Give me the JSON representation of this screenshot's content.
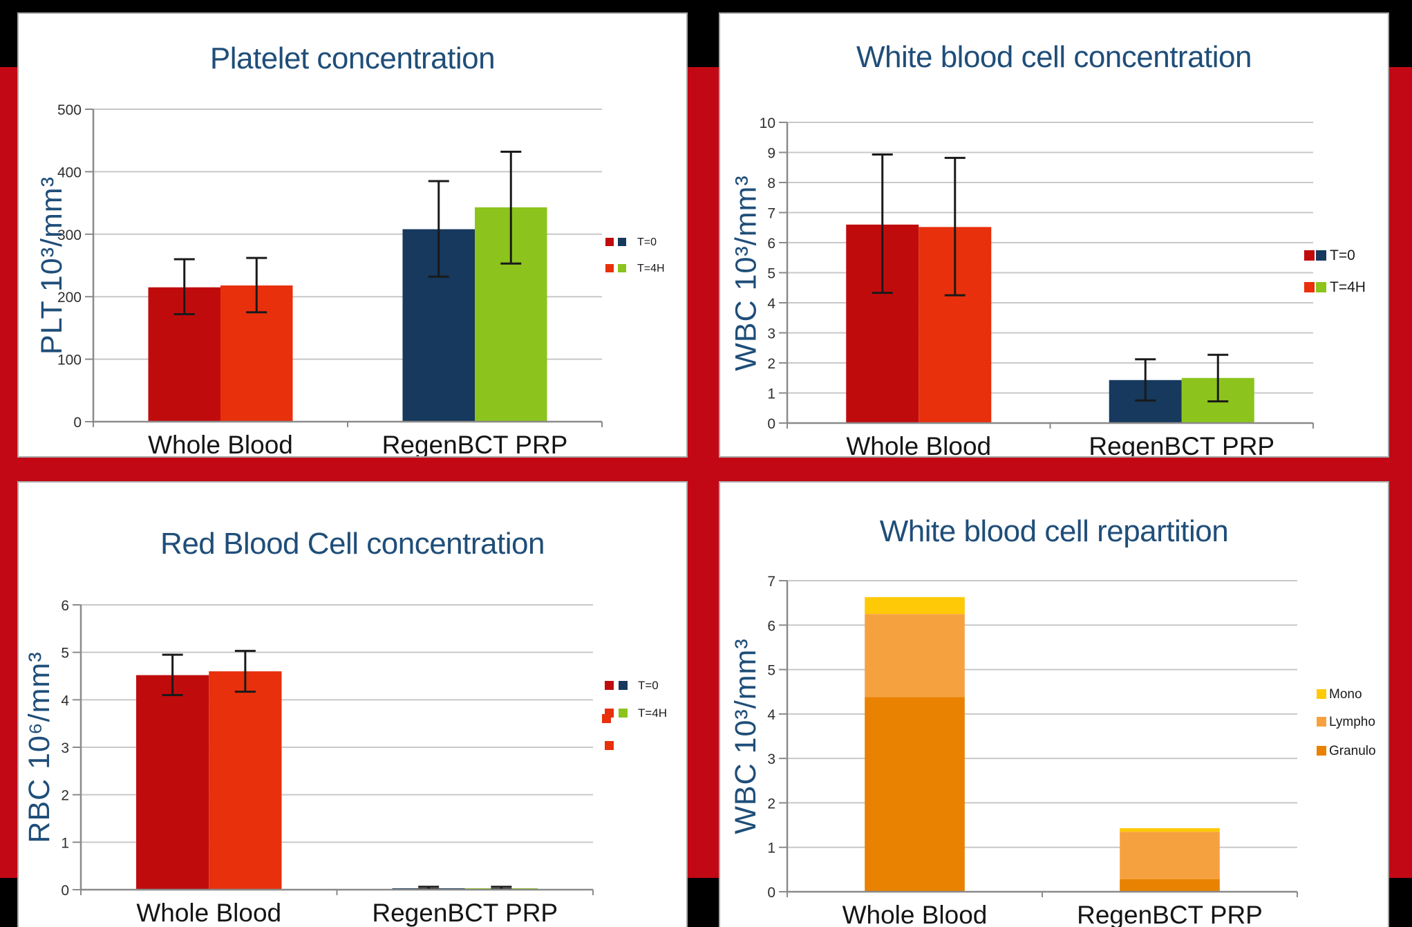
{
  "page": {
    "background_color": "#000000",
    "band_color": "#C20814",
    "panel_border_color": "#A8A8A8",
    "title_color": "#1F4E79",
    "grid_color": "#C8C8C8",
    "axis_color": "#8A8A8A",
    "tick_label_color": "#2E2E2E",
    "category_label_color": "#141414",
    "error_bar_color": "#1A1A1A",
    "legend_text_color": "#1A1A1A"
  },
  "chart_data": [
    {
      "id": "platelet",
      "type": "bar",
      "title": "Platelet concentration",
      "ylabel": "PLT 10³/mm³",
      "xlabel": "",
      "ylim": [
        0,
        500
      ],
      "ytick_step": 100,
      "grid": true,
      "legend_position": "right",
      "categories": [
        "Whole Blood",
        "RegenBCT PRP"
      ],
      "series": [
        {
          "name": "T=0",
          "values": [
            215,
            308
          ],
          "colors": [
            "#C00B0D",
            "#16395D"
          ],
          "error_low": [
            172,
            232
          ],
          "error_high": [
            260,
            385
          ]
        },
        {
          "name": "T=4H",
          "values": [
            218,
            343
          ],
          "colors": [
            "#E8300C",
            "#8CC41D"
          ],
          "error_low": [
            175,
            253
          ],
          "error_high": [
            262,
            432
          ]
        }
      ],
      "legend": [
        {
          "label": "T=0",
          "swatches": [
            "#C00B0D",
            "#16395D"
          ]
        },
        {
          "label": "T=4H",
          "swatches": [
            "#E8300C",
            "#8CC41D"
          ]
        }
      ]
    },
    {
      "id": "wbc-concentration",
      "type": "bar",
      "title": "White blood cell concentration",
      "ylabel": "WBC 10³/mm³",
      "xlabel": "",
      "ylim": [
        0,
        10
      ],
      "ytick_step": 1,
      "grid": true,
      "legend_position": "right",
      "categories": [
        "Whole Blood",
        "RegenBCT PRP"
      ],
      "series": [
        {
          "name": "T=0",
          "values": [
            6.6,
            1.43
          ],
          "colors": [
            "#C00B0D",
            "#16395D"
          ],
          "error_low": [
            4.33,
            0.75
          ],
          "error_high": [
            8.93,
            2.12
          ]
        },
        {
          "name": "T=4H",
          "values": [
            6.52,
            1.5
          ],
          "colors": [
            "#E8300C",
            "#8CC41D"
          ],
          "error_low": [
            4.25,
            0.72
          ],
          "error_high": [
            8.82,
            2.27
          ]
        }
      ],
      "legend": [
        {
          "label": "T=0",
          "swatches": [
            "#C00B0D",
            "#16395D"
          ]
        },
        {
          "label": "T=4H",
          "swatches": [
            "#E8300C",
            "#8CC41D"
          ]
        }
      ]
    },
    {
      "id": "rbc-concentration",
      "type": "bar",
      "title": "Red Blood Cell concentration",
      "ylabel": "RBC 10⁶/mm³",
      "xlabel": "",
      "ylim": [
        0,
        6
      ],
      "ytick_step": 1,
      "grid": true,
      "legend_position": "right",
      "categories": [
        "Whole Blood",
        "RegenBCT PRP"
      ],
      "series": [
        {
          "name": "T=0",
          "values": [
            4.52,
            0.03
          ],
          "colors": [
            "#C00B0D",
            "#16395D"
          ],
          "error_low": [
            4.1,
            0.01
          ],
          "error_high": [
            4.95,
            0.06
          ]
        },
        {
          "name": "T=4H",
          "values": [
            4.6,
            0.03
          ],
          "colors": [
            "#E8300C",
            "#8CC41D"
          ],
          "error_low": [
            4.17,
            0.01
          ],
          "error_high": [
            5.03,
            0.06
          ]
        }
      ],
      "legend": [
        {
          "label": "T=0",
          "swatches": [
            "#C00B0D",
            "#16395D"
          ]
        },
        {
          "label": "T=4H",
          "swatches": [
            "#E8300C",
            "#8CC41D"
          ],
          "first_swatch_double": true
        },
        {
          "label": "",
          "swatches": [
            "#E8300C"
          ]
        }
      ]
    },
    {
      "id": "wbc-repartition",
      "type": "stacked-bar",
      "title": "White blood cell repartition",
      "ylabel": "WBC 10³/mm³",
      "xlabel": "",
      "ylim": [
        0,
        7
      ],
      "ytick_step": 1,
      "grid": true,
      "legend_position": "right",
      "categories": [
        "Whole Blood",
        "RegenBCT PRP"
      ],
      "series": [
        {
          "name": "Granulo",
          "color": "#E88200",
          "values": [
            4.38,
            0.28
          ]
        },
        {
          "name": "Lympho",
          "color": "#F6A140",
          "values": [
            1.87,
            1.07
          ]
        },
        {
          "name": "Mono",
          "color": "#FEC907",
          "values": [
            0.38,
            0.08
          ]
        }
      ],
      "legend": [
        {
          "label": "Mono",
          "swatches": [
            "#FEC907"
          ]
        },
        {
          "label": "Lympho",
          "swatches": [
            "#F6A140"
          ]
        },
        {
          "label": "Granulo",
          "swatches": [
            "#E88200"
          ]
        }
      ]
    }
  ]
}
